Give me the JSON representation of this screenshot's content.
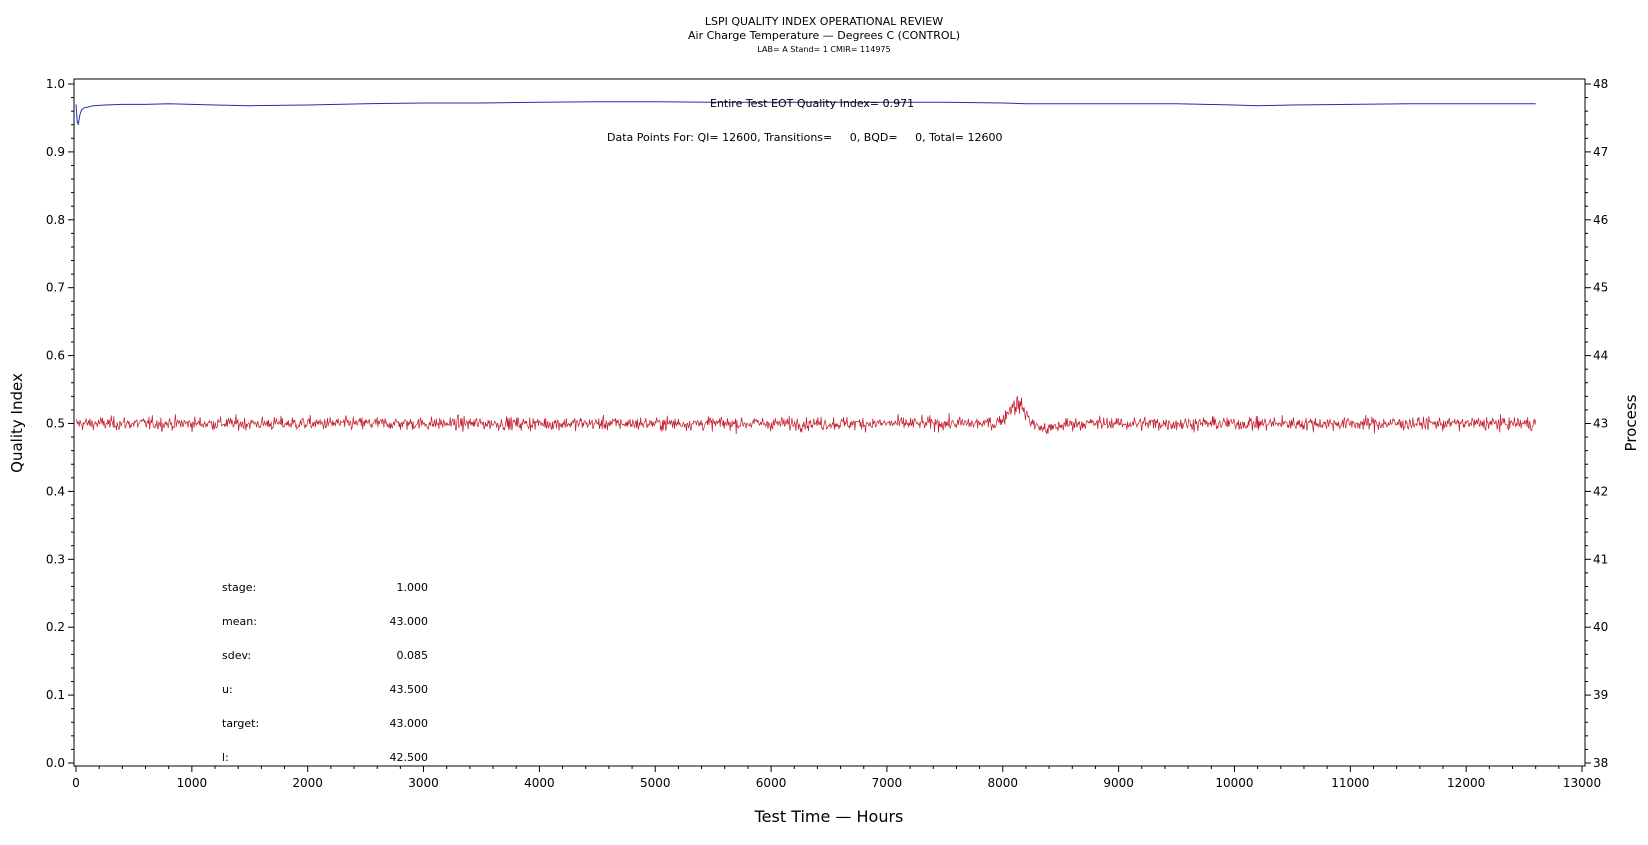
{
  "chart_data": {
    "type": "line",
    "title": "LSPI QUALITY INDEX OPERATIONAL REVIEW",
    "subtitle": "Air Charge Temperature — Degrees C (CONTROL)",
    "subtitle2": "LAB= A Stand= 1 CMIR= 114975",
    "xlabel": "Test Time — Hours",
    "ylabel_left": "Quality Index",
    "ylabel_right": "Process",
    "xlim": [
      0,
      13000
    ],
    "ylim_left": [
      0.0,
      1.0
    ],
    "ylim_right": [
      38,
      48
    ],
    "x_ticks": [
      "0",
      "1000",
      "2000",
      "3000",
      "4000",
      "5000",
      "6000",
      "7000",
      "8000",
      "9000",
      "10000",
      "11000",
      "12000",
      "13000"
    ],
    "y_left_ticks": [
      "0.0",
      "0.1",
      "0.2",
      "0.3",
      "0.4",
      "0.5",
      "0.6",
      "0.7",
      "0.8",
      "0.9",
      "1.0"
    ],
    "y_right_ticks": [
      "38",
      "39",
      "40",
      "41",
      "42",
      "43",
      "44",
      "45",
      "46",
      "47",
      "48"
    ],
    "annotations": {
      "qi_text": "Entire Test EOT Quality Index=  0.971",
      "points_text": "Data Points For: QI= 12600, Transitions=     0, BQD=     0, Total= 12600"
    },
    "stats": [
      {
        "label": "stage:",
        "value": "1.000"
      },
      {
        "label": "mean:",
        "value": "43.000"
      },
      {
        "label": "sdev:",
        "value": "0.085"
      },
      {
        "label": "u:",
        "value": "43.500"
      },
      {
        "label": "target:",
        "value": "43.000"
      },
      {
        "label": "l:",
        "value": "42.500"
      }
    ],
    "series": [
      {
        "axis": "left",
        "color": "#1f2fb4",
        "x": [
          0,
          10,
          20,
          30,
          40,
          50,
          70,
          100,
          150,
          250,
          400,
          600,
          800,
          1000,
          1200,
          1500,
          2000,
          2500,
          3000,
          3500,
          4000,
          4500,
          5000,
          5500,
          6000,
          6500,
          7000,
          7500,
          8000,
          8200,
          8500,
          9000,
          9500,
          10000,
          10200,
          10500,
          11000,
          11500,
          12000,
          12600
        ],
        "values": [
          0.97,
          0.945,
          0.94,
          0.952,
          0.958,
          0.962,
          0.965,
          0.966,
          0.968,
          0.969,
          0.97,
          0.97,
          0.971,
          0.97,
          0.969,
          0.968,
          0.969,
          0.971,
          0.972,
          0.972,
          0.973,
          0.974,
          0.974,
          0.973,
          0.973,
          0.973,
          0.973,
          0.973,
          0.972,
          0.971,
          0.971,
          0.971,
          0.971,
          0.969,
          0.968,
          0.969,
          0.97,
          0.971,
          0.971,
          0.971
        ]
      },
      {
        "axis": "right",
        "color": "#c0182a",
        "x_range": [
          0,
          12600
        ],
        "mean": 43.0,
        "sdev": 0.085,
        "excursion": {
          "x": 8120,
          "peak": 43.35
        }
      }
    ],
    "grid": false
  }
}
